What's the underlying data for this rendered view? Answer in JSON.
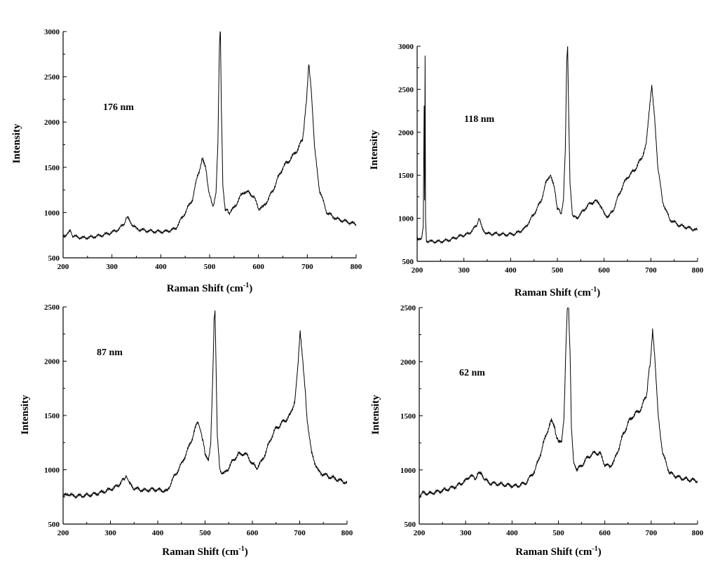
{
  "figure": {
    "colors": {
      "line": "#000000",
      "background": "#ffffff"
    }
  },
  "chart_data": [
    {
      "type": "line",
      "title": "",
      "annotation": "176 nm",
      "xlabel": "Raman Shift (cm",
      "xlabel_sup": "-1",
      "xlabel_close": ")",
      "ylabel": "Intensity",
      "xlim": [
        200,
        800
      ],
      "ylim": [
        500,
        3000
      ],
      "xticks": [
        "200",
        "300",
        "400",
        "500",
        "600",
        "700",
        "800"
      ],
      "yticks": [
        "500",
        "1000",
        "1500",
        "2000",
        "2500",
        "3000"
      ],
      "grid": false,
      "series": [
        {
          "x": [
            200,
            210,
            215,
            220,
            240,
            260,
            280,
            300,
            315,
            325,
            333,
            340,
            350,
            370,
            390,
            410,
            430,
            450,
            465,
            475,
            485,
            492,
            500,
            508,
            513,
            517,
            520,
            522,
            524,
            527,
            532,
            540,
            550,
            560,
            570,
            580,
            590,
            600,
            610,
            620,
            630,
            640,
            650,
            660,
            670,
            680,
            690,
            698,
            703,
            708,
            715,
            725,
            740,
            760,
            780,
            800
          ],
          "y": [
            740,
            760,
            810,
            740,
            720,
            730,
            750,
            780,
            820,
            880,
            960,
            880,
            820,
            800,
            790,
            790,
            820,
            1000,
            1150,
            1400,
            1590,
            1480,
            1180,
            1070,
            1200,
            1800,
            2800,
            3000,
            2200,
            1300,
            1040,
            1000,
            1050,
            1150,
            1230,
            1220,
            1180,
            1050,
            1060,
            1150,
            1250,
            1380,
            1500,
            1560,
            1620,
            1700,
            1800,
            2200,
            2680,
            2350,
            1700,
            1250,
            1000,
            930,
            900,
            870
          ]
        }
      ]
    },
    {
      "type": "line",
      "title": "",
      "annotation": "118 nm",
      "xlabel": "Raman Shift (cm",
      "xlabel_sup": "-1",
      "xlabel_close": ")",
      "ylabel": "Intensity",
      "xlim": [
        200,
        800
      ],
      "ylim": [
        500,
        3000
      ],
      "xticks": [
        "200",
        "300",
        "400",
        "500",
        "600",
        "700",
        "800"
      ],
      "yticks": [
        "500",
        "1000",
        "1500",
        "2000",
        "2500",
        "3000"
      ],
      "grid": false,
      "series": [
        {
          "x": [
            200,
            210,
            213,
            215,
            216,
            217,
            218,
            220,
            230,
            250,
            270,
            290,
            310,
            325,
            333,
            340,
            350,
            370,
            390,
            410,
            430,
            450,
            465,
            475,
            485,
            492,
            500,
            508,
            513,
            517,
            520,
            522,
            524,
            527,
            532,
            540,
            550,
            560,
            570,
            580,
            590,
            600,
            610,
            620,
            630,
            640,
            650,
            660,
            670,
            680,
            690,
            697,
            702,
            708,
            715,
            725,
            740,
            760,
            780,
            800
          ],
          "y": [
            750,
            780,
            900,
            2300,
            1200,
            2880,
            1000,
            740,
            730,
            730,
            750,
            790,
            820,
            900,
            990,
            870,
            820,
            820,
            810,
            820,
            880,
            1050,
            1200,
            1400,
            1520,
            1400,
            1120,
            1060,
            1200,
            1800,
            2800,
            3000,
            2300,
            1400,
            1050,
            1000,
            1050,
            1120,
            1170,
            1200,
            1180,
            1050,
            1020,
            1100,
            1250,
            1380,
            1480,
            1530,
            1600,
            1700,
            1850,
            2250,
            2560,
            2200,
            1600,
            1200,
            990,
            920,
            890,
            860
          ]
        }
      ]
    },
    {
      "type": "line",
      "title": "",
      "annotation": "87 nm",
      "xlabel": "Raman Shift (cm",
      "xlabel_sup": "-1",
      "xlabel_close": ")",
      "ylabel": "Intensity",
      "xlim": [
        200,
        800
      ],
      "ylim": [
        500,
        2500
      ],
      "xticks": [
        "200",
        "300",
        "400",
        "500",
        "600",
        "700",
        "800"
      ],
      "yticks": [
        "500",
        "1000",
        "1500",
        "2000",
        "2500"
      ],
      "grid": false,
      "series": [
        {
          "x": [
            200,
            210,
            220,
            240,
            260,
            280,
            300,
            315,
            325,
            333,
            340,
            350,
            370,
            390,
            410,
            420,
            430,
            450,
            465,
            475,
            485,
            492,
            500,
            507,
            512,
            516,
            519,
            521,
            523,
            526,
            531,
            540,
            550,
            560,
            570,
            580,
            590,
            600,
            610,
            620,
            630,
            640,
            650,
            660,
            670,
            680,
            690,
            697,
            701,
            707,
            715,
            725,
            740,
            760,
            780,
            800
          ],
          "y": [
            750,
            780,
            760,
            760,
            770,
            790,
            820,
            850,
            900,
            940,
            870,
            830,
            810,
            820,
            810,
            800,
            900,
            1050,
            1200,
            1320,
            1450,
            1350,
            1150,
            1100,
            1250,
            1800,
            2400,
            2500,
            2000,
            1300,
            1000,
            960,
            1020,
            1090,
            1140,
            1150,
            1130,
            1050,
            1020,
            1080,
            1180,
            1300,
            1380,
            1420,
            1460,
            1500,
            1650,
            2000,
            2270,
            2000,
            1500,
            1150,
            980,
            940,
            910,
            880
          ]
        }
      ]
    },
    {
      "type": "line",
      "title": "",
      "annotation": "62 nm",
      "xlabel": "Raman Shift (cm",
      "xlabel_sup": "-1",
      "xlabel_close": ")",
      "ylabel": "Intensity",
      "xlim": [
        200,
        800
      ],
      "ylim": [
        500,
        2500
      ],
      "xticks": [
        "200",
        "300",
        "400",
        "500",
        "600",
        "700",
        "800"
      ],
      "yticks": [
        "500",
        "1000",
        "1500",
        "2000",
        "2500"
      ],
      "grid": false,
      "series": [
        {
          "x": [
            200,
            210,
            220,
            240,
            260,
            280,
            300,
            310,
            320,
            333,
            340,
            350,
            370,
            390,
            410,
            430,
            450,
            465,
            475,
            485,
            492,
            500,
            507,
            512,
            516,
            519,
            522,
            525,
            528,
            533,
            540,
            550,
            560,
            570,
            580,
            590,
            600,
            610,
            620,
            630,
            640,
            650,
            660,
            670,
            680,
            690,
            698,
            703,
            708,
            715,
            725,
            740,
            760,
            780,
            800
          ],
          "y": [
            760,
            790,
            780,
            800,
            820,
            850,
            900,
            950,
            920,
            990,
            920,
            880,
            870,
            860,
            850,
            880,
            1000,
            1200,
            1350,
            1450,
            1380,
            1250,
            1250,
            1500,
            2100,
            2500,
            2500,
            2100,
            1400,
            1080,
            1000,
            1040,
            1100,
            1140,
            1160,
            1150,
            1050,
            1030,
            1080,
            1200,
            1330,
            1430,
            1500,
            1530,
            1580,
            1700,
            2000,
            2300,
            2000,
            1500,
            1150,
            970,
            930,
            910,
            900
          ]
        }
      ]
    }
  ]
}
